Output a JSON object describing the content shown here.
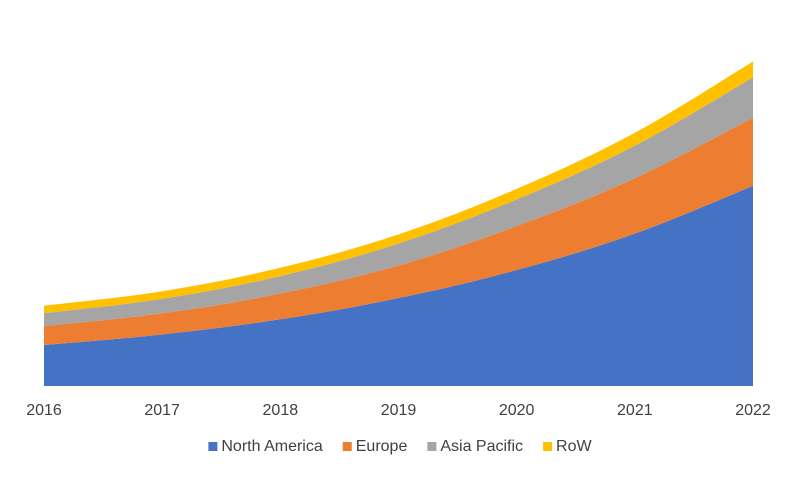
{
  "chart_data": {
    "type": "area",
    "stacked": true,
    "x": [
      "2016",
      "2017",
      "2018",
      "2019",
      "2020",
      "2021",
      "2022"
    ],
    "series": [
      {
        "name": "North America",
        "values": [
          54,
          68,
          88,
          116,
          153,
          201,
          264
        ],
        "color": "#4472C4"
      },
      {
        "name": "Europe",
        "values": [
          25,
          28,
          34,
          43,
          58,
          73,
          90
        ],
        "color": "#ED7D31"
      },
      {
        "name": "Asia Pacific",
        "values": [
          17,
          19,
          23,
          29,
          35,
          43,
          53
        ],
        "color": "#A5A5A5"
      },
      {
        "name": "RoW",
        "values": [
          10,
          10,
          11,
          12,
          14,
          17,
          21
        ],
        "color": "#FFC000"
      }
    ],
    "ylim": [
      0,
      430
    ],
    "grid": false,
    "y_axis_labels": false,
    "legend": "bottom",
    "title": "",
    "xlabel": "",
    "ylabel": ""
  }
}
